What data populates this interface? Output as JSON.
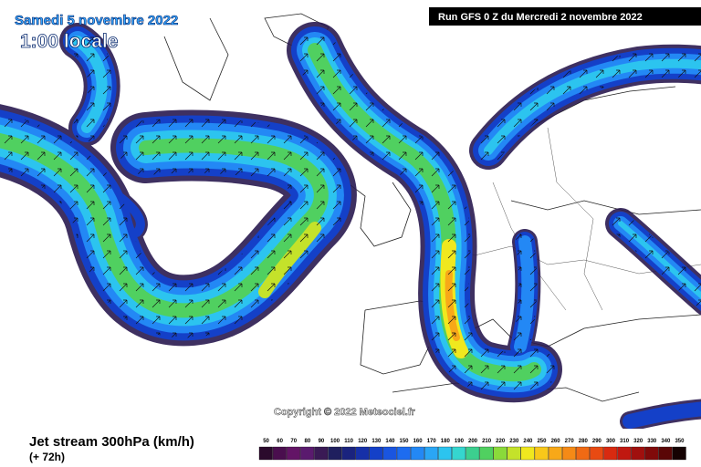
{
  "header": {
    "date": "Samedi 5 novembre 2022",
    "hour": "1:00 locale",
    "run": "Run GFS 0 Z du Mercredi 2 novembre 2022"
  },
  "map": {
    "copyright": "Copyright © 2022 Meteociel.fr"
  },
  "footer": {
    "title": "Jet stream 300hPa (km/h)",
    "lead": "(+ 72h)"
  },
  "legend": {
    "steps": [
      {
        "value": 50,
        "color": "#2b0a2c"
      },
      {
        "value": 60,
        "color": "#4a0e4e"
      },
      {
        "value": 70,
        "color": "#631466"
      },
      {
        "value": 80,
        "color": "#5a1a6e"
      },
      {
        "value": 90,
        "color": "#3a1a55"
      },
      {
        "value": 100,
        "color": "#1f1f5e"
      },
      {
        "value": 110,
        "color": "#1a237e"
      },
      {
        "value": 120,
        "color": "#1630a8"
      },
      {
        "value": 130,
        "color": "#1440c8"
      },
      {
        "value": 140,
        "color": "#1a55e0"
      },
      {
        "value": 150,
        "color": "#1d6cf0"
      },
      {
        "value": 160,
        "color": "#2388f5"
      },
      {
        "value": 170,
        "color": "#2aa6f5"
      },
      {
        "value": 180,
        "color": "#2cc4ef"
      },
      {
        "value": 190,
        "color": "#35d6cf"
      },
      {
        "value": 200,
        "color": "#3ccf8f"
      },
      {
        "value": 210,
        "color": "#50d060"
      },
      {
        "value": 220,
        "color": "#8ada3a"
      },
      {
        "value": 230,
        "color": "#c4e22a"
      },
      {
        "value": 240,
        "color": "#f0e81e"
      },
      {
        "value": 250,
        "color": "#f8c81a"
      },
      {
        "value": 260,
        "color": "#f8a818"
      },
      {
        "value": 270,
        "color": "#f58a16"
      },
      {
        "value": 280,
        "color": "#f06a14"
      },
      {
        "value": 290,
        "color": "#e84a12"
      },
      {
        "value": 300,
        "color": "#d82a10"
      },
      {
        "value": 310,
        "color": "#c01810"
      },
      {
        "value": 320,
        "color": "#a0100e"
      },
      {
        "value": 330,
        "color": "#800a0a"
      },
      {
        "value": 340,
        "color": "#5a0606"
      },
      {
        "value": 350,
        "color": "#150202"
      }
    ]
  }
}
